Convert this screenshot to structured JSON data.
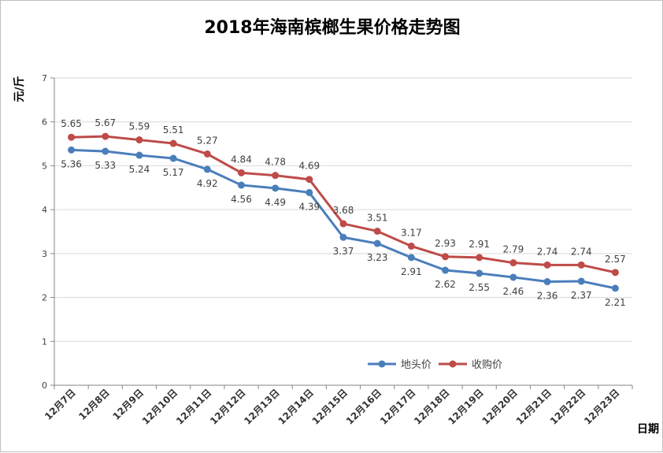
{
  "chart_data": {
    "type": "line",
    "title": "2018年海南槟榔生果价格走势图",
    "xlabel": "日期",
    "ylabel": "元/斤",
    "ylim": [
      0,
      7
    ],
    "yticks": [
      0,
      1,
      2,
      3,
      4,
      5,
      6,
      7
    ],
    "grid": true,
    "legend_position": "bottom-right",
    "categories": [
      "12月7日",
      "12月8日",
      "12月9日",
      "12月10日",
      "12月11日",
      "12月12日",
      "12月13日",
      "12月14日",
      "12月15日",
      "12月16日",
      "12月17日",
      "12月18日",
      "12月19日",
      "12月20日",
      "12月21日",
      "12月22日",
      "12月23日"
    ],
    "series": [
      {
        "name": "地头价",
        "color": "#4a7ebb",
        "values": [
          5.36,
          5.33,
          5.24,
          5.17,
          4.92,
          4.56,
          4.49,
          4.39,
          3.37,
          3.23,
          2.91,
          2.62,
          2.55,
          2.46,
          2.36,
          2.37,
          2.21
        ],
        "labels": [
          "5.36",
          "5.33",
          "5.24",
          "5.17",
          "4.92",
          "4.56",
          "4.49",
          "4.39",
          "3.37",
          "3.23",
          "2.91",
          "2.62",
          "2.55",
          "2.46",
          "2.36",
          "2.37",
          "2.21"
        ]
      },
      {
        "name": "收购价",
        "color": "#be4b48",
        "values": [
          5.65,
          5.67,
          5.59,
          5.51,
          5.27,
          4.84,
          4.78,
          4.69,
          3.68,
          3.51,
          3.17,
          2.93,
          2.91,
          2.79,
          2.74,
          2.74,
          2.57
        ],
        "labels": [
          "5.65",
          "5.67",
          "5.59",
          "5.51",
          "5.27",
          "4.84",
          "4.78",
          "4.69",
          "3.68",
          "3.51",
          "3.17",
          "2.93",
          "2.91",
          "2.79",
          "2.74",
          "2.74",
          "2.57"
        ]
      }
    ]
  }
}
